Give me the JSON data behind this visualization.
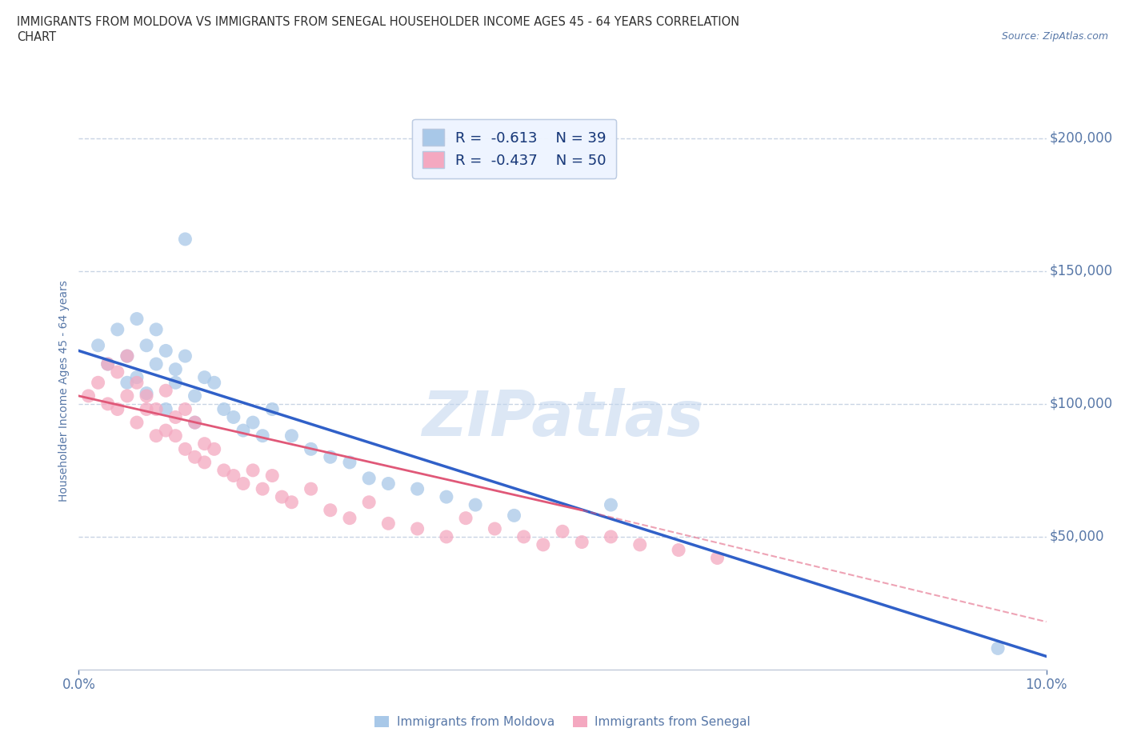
{
  "title_line1": "IMMIGRANTS FROM MOLDOVA VS IMMIGRANTS FROM SENEGAL HOUSEHOLDER INCOME AGES 45 - 64 YEARS CORRELATION",
  "title_line2": "CHART",
  "source_text": "Source: ZipAtlas.com",
  "ylabel": "Householder Income Ages 45 - 64 years",
  "watermark": "ZIPatlas",
  "moldova_color": "#a8c8e8",
  "senegal_color": "#f4a8c0",
  "moldova_line_color": "#3060c8",
  "senegal_line_color": "#e05878",
  "moldova_R": -0.613,
  "moldova_N": 39,
  "senegal_R": -0.437,
  "senegal_N": 50,
  "xlim": [
    0.0,
    0.1
  ],
  "ylim": [
    0,
    210000
  ],
  "xtick_labels_edge": [
    "0.0%",
    "10.0%"
  ],
  "xtick_values_edge": [
    0.0,
    0.1
  ],
  "ytick_labels": [
    "$50,000",
    "$100,000",
    "$150,000",
    "$200,000"
  ],
  "ytick_values": [
    50000,
    100000,
    150000,
    200000
  ],
  "background_color": "#ffffff",
  "grid_color": "#c8d4e4",
  "title_color": "#303030",
  "axis_label_color": "#5878a8",
  "tick_label_color": "#5878a8",
  "moldova_line_x0": 0.0,
  "moldova_line_y0": 120000,
  "moldova_line_x1": 0.1,
  "moldova_line_y1": 5000,
  "senegal_line_x0": 0.0,
  "senegal_line_y0": 103000,
  "senegal_line_x1_solid": 0.052,
  "senegal_line_y1_solid": 60000,
  "senegal_line_x1_dash": 0.1,
  "senegal_line_y1_dash": 18000,
  "moldova_scatter_x": [
    0.002,
    0.003,
    0.004,
    0.005,
    0.005,
    0.006,
    0.006,
    0.007,
    0.007,
    0.008,
    0.008,
    0.009,
    0.009,
    0.01,
    0.01,
    0.011,
    0.011,
    0.012,
    0.012,
    0.013,
    0.014,
    0.015,
    0.016,
    0.017,
    0.018,
    0.019,
    0.02,
    0.022,
    0.024,
    0.026,
    0.028,
    0.03,
    0.032,
    0.035,
    0.038,
    0.041,
    0.045,
    0.055,
    0.095
  ],
  "moldova_scatter_y": [
    122000,
    115000,
    128000,
    118000,
    108000,
    132000,
    110000,
    122000,
    104000,
    128000,
    115000,
    120000,
    98000,
    113000,
    108000,
    162000,
    118000,
    103000,
    93000,
    110000,
    108000,
    98000,
    95000,
    90000,
    93000,
    88000,
    98000,
    88000,
    83000,
    80000,
    78000,
    72000,
    70000,
    68000,
    65000,
    62000,
    58000,
    62000,
    8000
  ],
  "senegal_scatter_x": [
    0.001,
    0.002,
    0.003,
    0.003,
    0.004,
    0.004,
    0.005,
    0.005,
    0.006,
    0.006,
    0.007,
    0.007,
    0.008,
    0.008,
    0.009,
    0.009,
    0.01,
    0.01,
    0.011,
    0.011,
    0.012,
    0.012,
    0.013,
    0.013,
    0.014,
    0.015,
    0.016,
    0.017,
    0.018,
    0.019,
    0.02,
    0.021,
    0.022,
    0.024,
    0.026,
    0.028,
    0.03,
    0.032,
    0.035,
    0.038,
    0.04,
    0.043,
    0.046,
    0.048,
    0.05,
    0.052,
    0.055,
    0.058,
    0.062,
    0.066
  ],
  "senegal_scatter_y": [
    103000,
    108000,
    100000,
    115000,
    98000,
    112000,
    103000,
    118000,
    93000,
    108000,
    98000,
    103000,
    88000,
    98000,
    105000,
    90000,
    95000,
    88000,
    98000,
    83000,
    93000,
    80000,
    85000,
    78000,
    83000,
    75000,
    73000,
    70000,
    75000,
    68000,
    73000,
    65000,
    63000,
    68000,
    60000,
    57000,
    63000,
    55000,
    53000,
    50000,
    57000,
    53000,
    50000,
    47000,
    52000,
    48000,
    50000,
    47000,
    45000,
    42000
  ],
  "legend_box_color": "#eef4ff",
  "legend_border_color": "#b8c8e0",
  "legend_text_color": "#1a3a7a"
}
